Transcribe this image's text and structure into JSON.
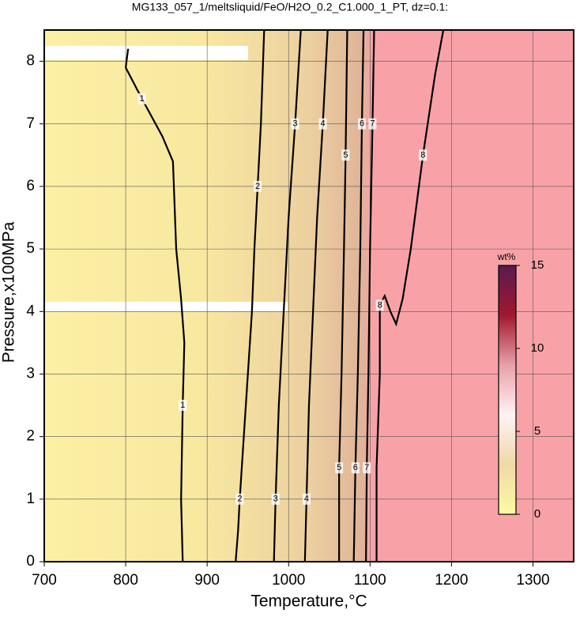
{
  "chart_data": {
    "type": "contour",
    "title": "MG133_057_1/meltsliquid/FeO/H2O_0.2_C1.000_1_PT, dz=0.1:",
    "x_label": "Temperature,°C",
    "y_label": "Pressure,x100MPa",
    "xlim": [
      700,
      1350
    ],
    "ylim": [
      0,
      8.5
    ],
    "xticks": [
      700,
      800,
      900,
      1000,
      1100,
      1200,
      1300
    ],
    "yticks": [
      0,
      1,
      2,
      3,
      4,
      5,
      6,
      7,
      8
    ],
    "grid": true,
    "line_color": "#000000",
    "contours": [
      {
        "level": 1,
        "x": [
          870,
          868,
          870,
          872,
          868,
          862,
          858,
          845,
          820,
          800,
          803
        ],
        "y": [
          0,
          1,
          2.5,
          3.5,
          4.2,
          5,
          6.4,
          6.8,
          7.4,
          7.9,
          8.2
        ]
      },
      {
        "level": 2,
        "x": [
          935,
          938,
          940,
          945,
          950,
          955,
          958,
          962,
          966,
          970
        ],
        "y": [
          0,
          0.5,
          1,
          2,
          3,
          4,
          5,
          6,
          7,
          8.5
        ]
      },
      {
        "level": 3,
        "x": [
          982,
          984,
          988,
          994,
          1000,
          1008,
          1015
        ],
        "y": [
          0,
          1,
          2.5,
          4,
          5.5,
          7,
          8.5
        ]
      },
      {
        "level": 4,
        "x": [
          1020,
          1022,
          1025,
          1030,
          1035,
          1042,
          1048
        ],
        "y": [
          0,
          1,
          2.5,
          4,
          5.5,
          7,
          8.5
        ]
      },
      {
        "level": 5,
        "x": [
          1062,
          1062,
          1065,
          1068,
          1070,
          1072
        ],
        "y": [
          0,
          1.5,
          3,
          5,
          6.5,
          8.5
        ]
      },
      {
        "level": 6,
        "x": [
          1080,
          1082,
          1085,
          1088,
          1090,
          1092
        ],
        "y": [
          0,
          1.5,
          3,
          5,
          7,
          8.5
        ]
      },
      {
        "level": 7,
        "x": [
          1095,
          1096,
          1098,
          1100,
          1103,
          1105
        ],
        "y": [
          0,
          1.5,
          3,
          5,
          7,
          8.5
        ]
      },
      {
        "level": 8,
        "x": [
          1108,
          1108,
          1112,
          1112,
          1118,
          1125,
          1132,
          1140,
          1150,
          1165,
          1180,
          1190
        ],
        "y": [
          0,
          1.5,
          3,
          4.1,
          4.25,
          4,
          3.8,
          4.2,
          5,
          6.5,
          7.8,
          8.5
        ]
      }
    ],
    "colorbar": {
      "label": "wt%",
      "lim": [
        0,
        15
      ],
      "ticks": [
        0,
        5,
        10,
        15
      ],
      "colors": [
        "#fdfba0",
        "#f0d8a8",
        "#fff2f4",
        "#e8a0a8",
        "#a01830",
        "#5a1a50"
      ]
    }
  }
}
